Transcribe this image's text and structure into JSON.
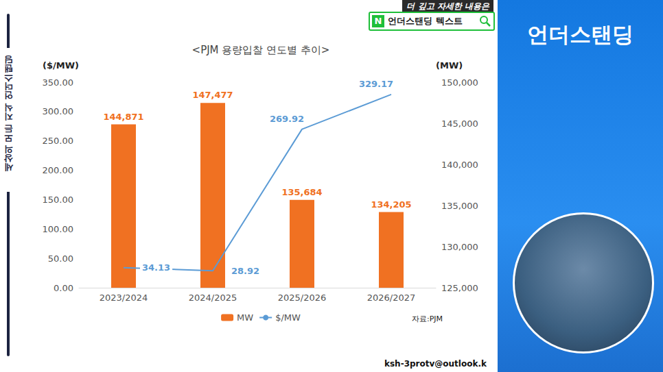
{
  "chart_data": {
    "type": "bar",
    "title": "<PJM 용량입찰 연도별 추이>",
    "y_label": "($/MW)",
    "y2_label": "(MW)",
    "source": "자료:PJM",
    "categories": [
      "2023/2024",
      "2024/2025",
      "2025/2026",
      "2026/2027"
    ],
    "series": [
      {
        "name": "MW",
        "type": "bar",
        "axis": "y2",
        "color": "#f07122",
        "values": [
          144871,
          147477,
          135684,
          134205
        ],
        "value_labels": [
          "144,871",
          "147,477",
          "135,684",
          "134,205"
        ]
      },
      {
        "name": "$/MW",
        "type": "line",
        "axis": "y",
        "color": "#5b9bd5",
        "marker": "none",
        "line_style": "solid",
        "values": [
          34.13,
          28.92,
          269.92,
          329.17
        ]
      }
    ],
    "ylim": [
      0,
      350
    ],
    "yticks": [
      {
        "value": 0,
        "label": "0.00"
      },
      {
        "value": 50,
        "label": "50.00"
      },
      {
        "value": 100,
        "label": "100.00"
      },
      {
        "value": 150,
        "label": "150.00"
      },
      {
        "value": 200,
        "label": "200.00"
      },
      {
        "value": 250,
        "label": "250.00"
      },
      {
        "value": 300,
        "label": "300.00"
      },
      {
        "value": 350,
        "label": "350.00"
      }
    ],
    "y2lim": [
      125000,
      150000
    ],
    "y2ticks": [
      {
        "value": 125000,
        "label": "125,000"
      },
      {
        "value": 130000,
        "label": "130,000"
      },
      {
        "value": 135000,
        "label": "135,000"
      },
      {
        "value": 140000,
        "label": "140,000"
      },
      {
        "value": 145000,
        "label": "145,000"
      },
      {
        "value": 150000,
        "label": "150,000"
      }
    ],
    "grid": false,
    "legend": "bottom",
    "data_labels": true
  },
  "frame": {
    "banner_caption": "더 깊고 자세한 내용은",
    "banner_logo": "N",
    "banner_link": "언더스탠딩 텍스트",
    "side_text": "세상의 모든 지식 언더스탠딩",
    "panel_title": "언더스탠딩",
    "email": "ksh-3protv@outlook.k"
  }
}
